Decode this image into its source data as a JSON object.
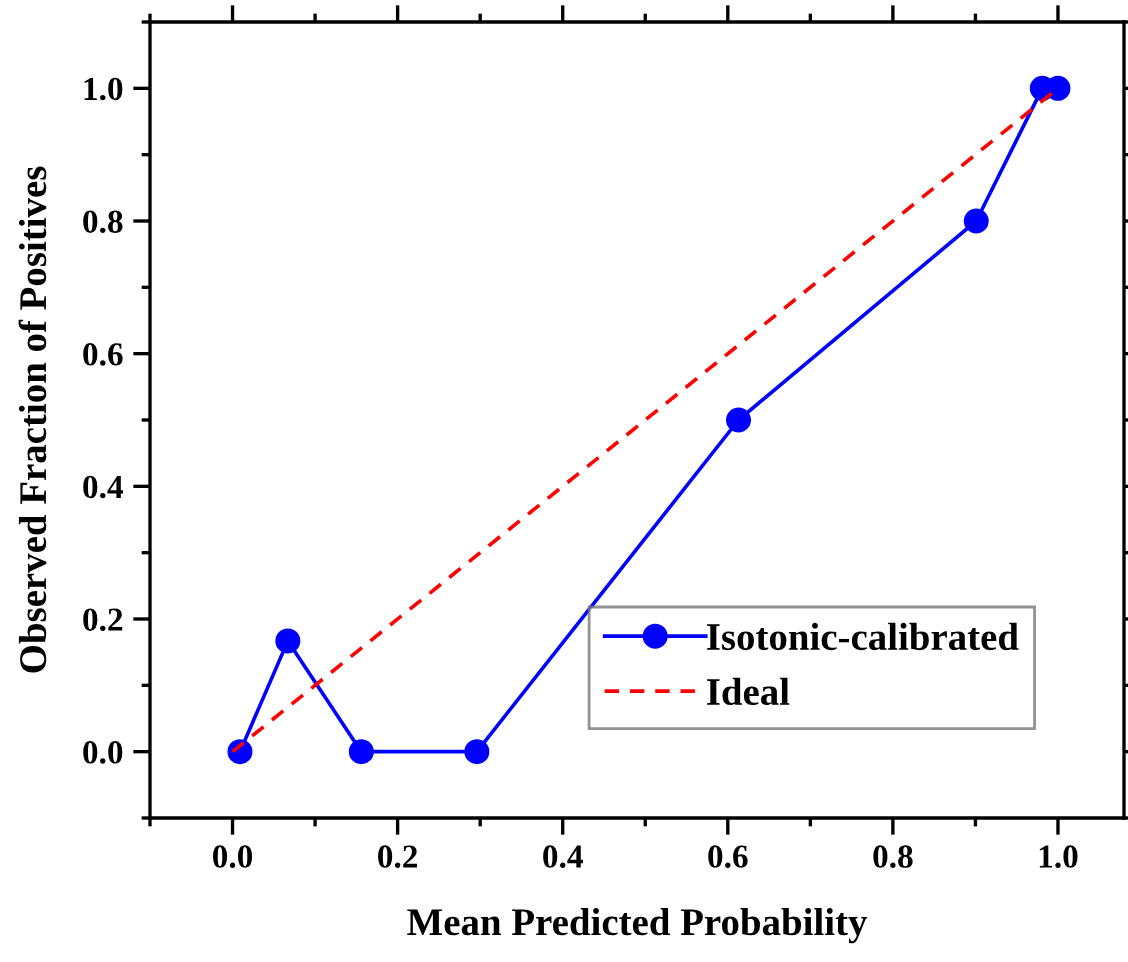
{
  "chart_data": {
    "type": "line",
    "xlabel": "Mean Predicted Probability",
    "ylabel": "Observed Fraction of Positives",
    "series": [
      {
        "name": "Isotonic-calibrated",
        "color": "#0000ff",
        "marker": "circle",
        "line_style": "solid",
        "x": [
          0.009,
          0.067,
          0.156,
          0.296,
          0.613,
          0.901,
          0.981,
          1.0
        ],
        "values": [
          0.0,
          0.167,
          0.0,
          0.0,
          0.5,
          0.8,
          1.0,
          1.0
        ]
      },
      {
        "name": "Ideal",
        "color": "#ff0000",
        "marker": "none",
        "line_style": "dashed",
        "x": [
          0.0,
          1.0
        ],
        "values": [
          0.0,
          1.0
        ]
      }
    ],
    "xlim": [
      -0.1,
      1.08
    ],
    "ylim": [
      -0.1,
      1.1
    ],
    "xticks": [
      {
        "value": 0,
        "label": "0.0"
      },
      0.2,
      0.4,
      0.6,
      0.8,
      {
        "value": 1,
        "label": "1.0"
      }
    ],
    "yticks": [
      {
        "value": 0,
        "label": "0.0"
      },
      0.2,
      0.4,
      0.6,
      0.8,
      {
        "value": 1,
        "label": "1.0"
      }
    ],
    "grid": false,
    "legend": "bottom right"
  }
}
